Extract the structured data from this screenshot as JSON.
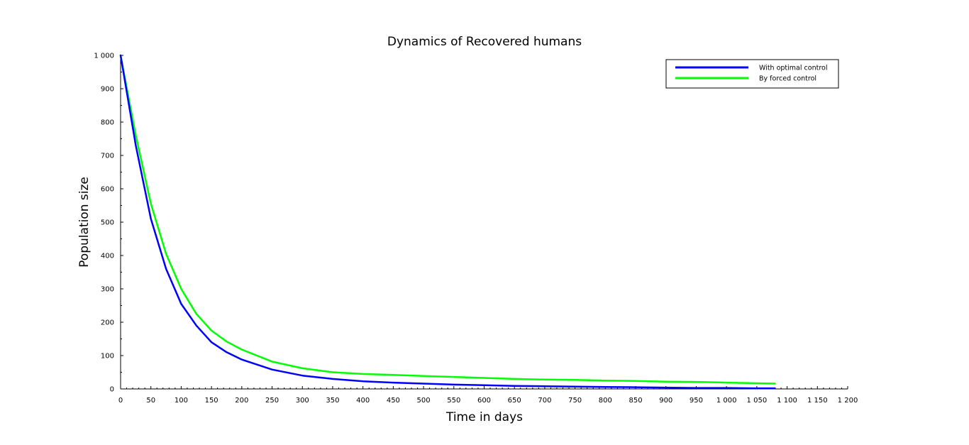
{
  "chart_data": {
    "type": "line",
    "title": "Dynamics of Recovered humans",
    "xlabel": "Time in days",
    "ylabel": "Population size",
    "xlim": [
      0,
      1200
    ],
    "ylim": [
      0,
      1000
    ],
    "x_ticks": [
      0,
      50,
      100,
      150,
      200,
      250,
      300,
      350,
      400,
      450,
      500,
      550,
      600,
      650,
      700,
      750,
      800,
      850,
      900,
      950,
      1000,
      1050,
      1100,
      1150,
      1200
    ],
    "x_tick_labels": [
      "0",
      "50",
      "100",
      "150",
      "200",
      "250",
      "300",
      "350",
      "400",
      "450",
      "500",
      "550",
      "600",
      "650",
      "700",
      "750",
      "800",
      "850",
      "900",
      "950",
      "1 000",
      "1 050",
      "1 100",
      "1 150",
      "1 200"
    ],
    "y_ticks": [
      0,
      100,
      200,
      300,
      400,
      500,
      600,
      700,
      800,
      900,
      1000
    ],
    "y_tick_labels": [
      "0",
      "100",
      "200",
      "300",
      "400",
      "500",
      "600",
      "700",
      "800",
      "900",
      "1 000"
    ],
    "grid": false,
    "legend_position": "top-right",
    "series": [
      {
        "name": "With optimal control",
        "color": "#0000ff",
        "x": [
          0,
          25,
          50,
          75,
          100,
          125,
          150,
          175,
          200,
          250,
          300,
          350,
          400,
          450,
          500,
          550,
          600,
          650,
          700,
          750,
          800,
          850,
          900,
          950,
          1000,
          1050,
          1080
        ],
        "y": [
          1000,
          730,
          510,
          360,
          255,
          190,
          140,
          110,
          88,
          58,
          40,
          30,
          23,
          19,
          16,
          13,
          11,
          9,
          8,
          7,
          6,
          5,
          4,
          3,
          3,
          2,
          2
        ]
      },
      {
        "name": "By forced control",
        "color": "#00ff00",
        "x": [
          0,
          25,
          50,
          75,
          100,
          125,
          150,
          175,
          200,
          250,
          300,
          350,
          400,
          450,
          500,
          550,
          600,
          650,
          700,
          750,
          800,
          850,
          900,
          950,
          1000,
          1050,
          1080
        ],
        "y": [
          1000,
          760,
          555,
          405,
          300,
          225,
          175,
          142,
          118,
          82,
          62,
          50,
          45,
          42,
          39,
          36,
          33,
          30,
          28,
          27,
          25,
          24,
          22,
          21,
          19,
          17,
          16
        ]
      }
    ]
  }
}
